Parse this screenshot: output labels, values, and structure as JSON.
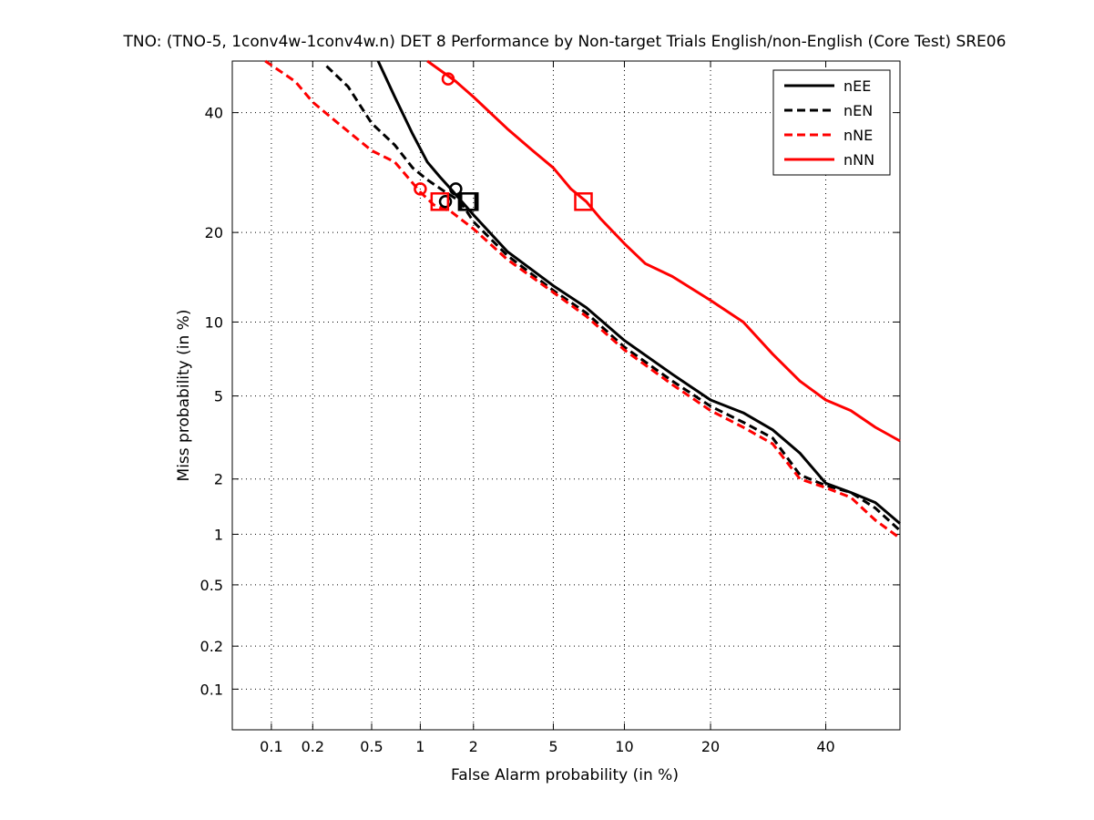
{
  "chart_data": {
    "type": "line",
    "title": "TNO: (TNO-5, 1conv4w-1conv4w.n) DET 8 Performance by Non-target Trials English/non-English (Core Test) SRE06",
    "xlabel": "False Alarm probability (in %)",
    "ylabel": "Miss probability (in %)",
    "x_scale": "normal-deviate (probit)",
    "y_scale": "normal-deviate (probit)",
    "xlim": [
      0.05,
      55
    ],
    "ylim": [
      0.05,
      50
    ],
    "x_ticks": [
      "0.1",
      "0.2",
      "0.5",
      "1",
      "2",
      "5",
      "10",
      "20",
      "40"
    ],
    "y_ticks": [
      "0.1",
      "0.2",
      "0.5",
      "1",
      "2",
      "5",
      "10",
      "20",
      "40"
    ],
    "grid": true,
    "legend_position": "top-right",
    "series": [
      {
        "name": "nEE",
        "color": "#000000",
        "style": "solid",
        "x": [
          0.55,
          0.7,
          0.9,
          1.1,
          1.3,
          1.5,
          2.0,
          3.0,
          5.0,
          7.0,
          10.0,
          15.0,
          20.0,
          25.0,
          30.0,
          35.0,
          40.0,
          45.0,
          50.0,
          55.0
        ],
        "y": [
          50,
          43,
          36,
          31,
          28.5,
          26.5,
          22.5,
          17.5,
          13.5,
          11.3,
          8.5,
          6.2,
          4.8,
          4.2,
          3.5,
          2.7,
          1.9,
          1.7,
          1.5,
          1.15
        ],
        "min_dcf": [
          1.9,
          24.5
        ],
        "act_dcf": [
          1.6,
          26.5
        ]
      },
      {
        "name": "nEN",
        "color": "#000000",
        "style": "dashed",
        "x": [
          0.25,
          0.35,
          0.5,
          0.7,
          0.9,
          1.1,
          1.4,
          1.7,
          2.0,
          3.0,
          5.0,
          7.0,
          10.0,
          15.0,
          20.0,
          25.0,
          30.0,
          35.0,
          40.0,
          45.0,
          50.0,
          55.0
        ],
        "y": [
          49,
          45,
          38,
          34,
          30,
          28,
          26,
          24.5,
          21.5,
          17,
          13,
          10.8,
          8,
          5.8,
          4.5,
          3.8,
          3.2,
          2.1,
          1.85,
          1.7,
          1.4,
          1.05
        ],
        "min_dcf": [
          1.85,
          24.5
        ],
        "act_dcf": [
          1.4,
          24.5
        ]
      },
      {
        "name": "nNE",
        "color": "#ff0000",
        "style": "dashed",
        "x": [
          0.09,
          0.15,
          0.2,
          0.3,
          0.5,
          0.7,
          1.0,
          1.2,
          1.5,
          2.0,
          3.0,
          5.0,
          7.0,
          10.0,
          15.0,
          20.0,
          25.0,
          30.0,
          35.0,
          40.0,
          45.0,
          50.0,
          55.0
        ],
        "y": [
          50,
          46,
          42,
          38,
          33,
          31,
          26,
          24,
          23,
          20.5,
          16.5,
          12.8,
          10.5,
          7.8,
          5.6,
          4.3,
          3.6,
          3.0,
          2.0,
          1.8,
          1.6,
          1.2,
          0.95
        ],
        "min_dcf": [
          1.3,
          24.5
        ],
        "act_dcf": [
          1.0,
          26.5
        ]
      },
      {
        "name": "nNN",
        "color": "#ff0000",
        "style": "solid",
        "x": [
          1.1,
          1.6,
          2.0,
          3.0,
          4.0,
          5.0,
          6.0,
          7.0,
          8.0,
          10.0,
          12.0,
          15.0,
          20.0,
          25.0,
          30.0,
          35.0,
          40.0,
          45.0,
          50.0,
          55.0
        ],
        "y": [
          50,
          46,
          43,
          37,
          33,
          30,
          26.5,
          24.5,
          22,
          18.5,
          16,
          14.5,
          12,
          10,
          7.5,
          5.8,
          4.8,
          4.3,
          3.6,
          3.1
        ],
        "min_dcf": [
          6.8,
          24.5
        ],
        "act_dcf": [
          1.45,
          46.5
        ]
      }
    ]
  }
}
